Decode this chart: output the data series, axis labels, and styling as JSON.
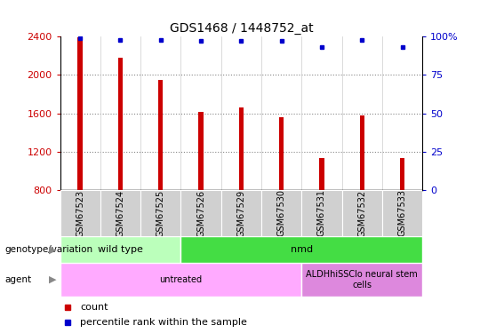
{
  "title": "GDS1468 / 1448752_at",
  "samples": [
    "GSM67523",
    "GSM67524",
    "GSM67525",
    "GSM67526",
    "GSM67529",
    "GSM67530",
    "GSM67531",
    "GSM67532",
    "GSM67533"
  ],
  "counts": [
    2390,
    2180,
    1950,
    1610,
    1660,
    1560,
    1130,
    1575,
    1130
  ],
  "percentiles": [
    99,
    98,
    98,
    97,
    97,
    97,
    93,
    98,
    93
  ],
  "ylim_left": [
    800,
    2400
  ],
  "ylim_right": [
    0,
    100
  ],
  "yticks_left": [
    800,
    1200,
    1600,
    2000,
    2400
  ],
  "yticks_right": [
    0,
    25,
    50,
    75,
    100
  ],
  "bar_color": "#cc0000",
  "dot_color": "#0000cc",
  "grid_color": "#888888",
  "left_tick_color": "#cc0000",
  "right_tick_color": "#0000cc",
  "genotype_row": [
    {
      "label": "wild type",
      "start": 0,
      "end": 3,
      "color": "#bbffbb"
    },
    {
      "label": "nmd",
      "start": 3,
      "end": 9,
      "color": "#44dd44"
    }
  ],
  "agent_row": [
    {
      "label": "untreated",
      "start": 0,
      "end": 6,
      "color": "#ffaaff"
    },
    {
      "label": "ALDHhiSSClo neural stem\ncells",
      "start": 6,
      "end": 9,
      "color": "#dd88dd"
    }
  ],
  "background_color": "#ffffff",
  "bar_width": 0.12
}
